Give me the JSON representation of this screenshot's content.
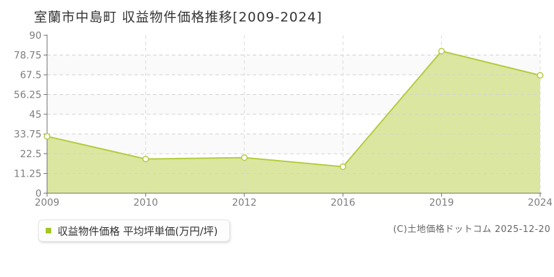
{
  "title": "室蘭市中島町 収益物件価格推移[2009-2024]",
  "legend": {
    "label": "収益物件価格 平均坪単価(万円/坪)",
    "marker_color": "#a4c626"
  },
  "copyright": "(C)土地価格ドットコム 2025-12-20",
  "chart_data": {
    "type": "area",
    "title": "室蘭市中島町 収益物件価格推移[2009-2024]",
    "categories": [
      "2009",
      "2010",
      "2012",
      "2016",
      "2019",
      "2024"
    ],
    "series": [
      {
        "name": "収益物件価格 平均坪単価(万円/坪)",
        "values": [
          32.4,
          19.5,
          20.3,
          15.1,
          81.0,
          67.2
        ]
      }
    ],
    "xlabel": "",
    "ylabel": "",
    "ylim": [
      0,
      90
    ],
    "yticks": [
      0,
      11.25,
      22.5,
      33.75,
      45,
      56.25,
      67.5,
      78.75,
      90
    ],
    "ytick_labels": [
      "0",
      "11.25",
      "22.5",
      "33.75",
      "45",
      "56.25",
      "67.5",
      "78.75",
      "90"
    ],
    "grid": "dashed",
    "legend_position": "bottom-left",
    "colors": {
      "line": "#b2cc3e",
      "fill": "#dbe7a0",
      "marker_fill": "#ffffff",
      "grid_h": "#d2d2d2",
      "grid_v": "#d9d9d9",
      "axis": "#6e6e6e",
      "tick_text": "#7d7d7d",
      "band": "#ffffff",
      "band_alt": "#fafafa"
    }
  }
}
